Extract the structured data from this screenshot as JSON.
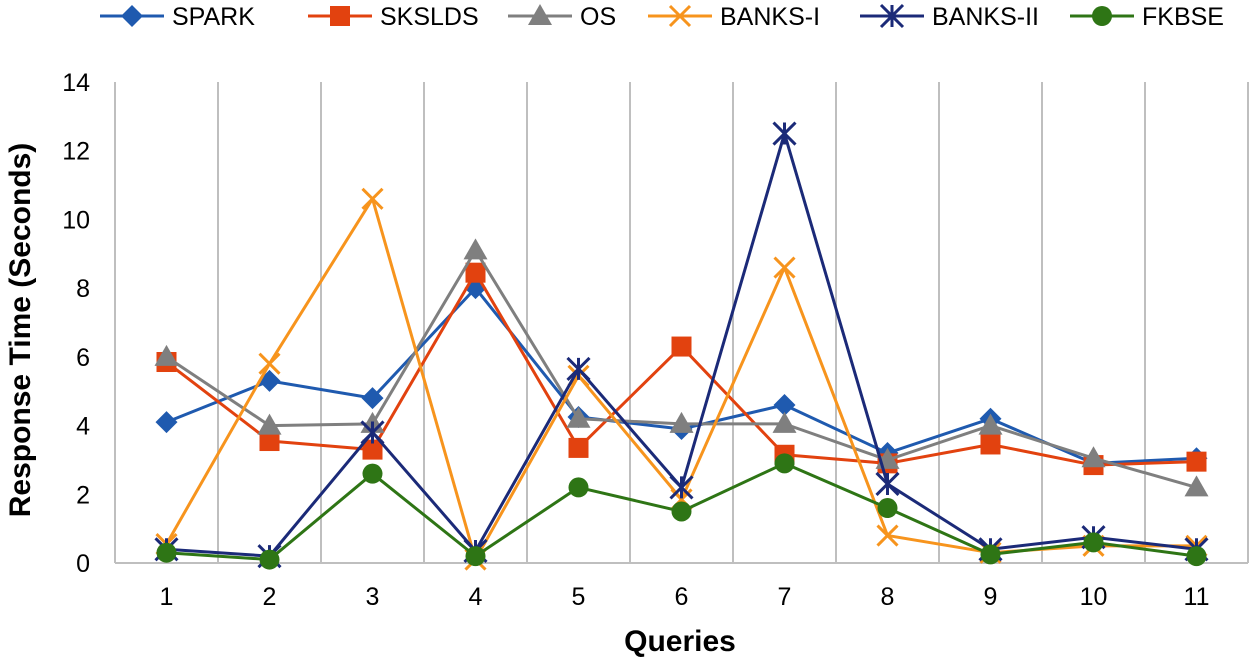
{
  "chart_data": {
    "type": "line",
    "title": "",
    "xlabel": "Queries",
    "ylabel": "Response Time (Seconds)",
    "categories": [
      "1",
      "2",
      "3",
      "4",
      "5",
      "6",
      "7",
      "8",
      "9",
      "10",
      "11"
    ],
    "ylim": [
      0,
      14
    ],
    "yticks": [
      0,
      2,
      4,
      6,
      8,
      10,
      12,
      14
    ],
    "grid": "vertical",
    "legend_position": "top",
    "series": [
      {
        "name": "SPARK",
        "color": "#1F5AAF",
        "marker": "diamond",
        "values": [
          4.1,
          5.3,
          4.8,
          8.0,
          4.25,
          3.9,
          4.6,
          3.2,
          4.2,
          2.9,
          3.05
        ]
      },
      {
        "name": "SKSLDS",
        "color": "#E2420F",
        "marker": "square",
        "values": [
          5.85,
          3.55,
          3.3,
          8.45,
          3.35,
          6.3,
          3.15,
          2.9,
          3.45,
          2.85,
          2.95
        ]
      },
      {
        "name": "OS",
        "color": "#7F7F7F",
        "marker": "triangle",
        "values": [
          6.0,
          4.0,
          4.05,
          9.1,
          4.2,
          4.05,
          4.05,
          3.0,
          4.0,
          3.05,
          2.2
        ]
      },
      {
        "name": "BANKS-I",
        "color": "#F7941D",
        "marker": "x",
        "values": [
          0.55,
          5.8,
          10.6,
          0.1,
          5.45,
          1.85,
          8.6,
          0.8,
          0.3,
          0.5,
          0.5
        ]
      },
      {
        "name": "BANKS-II",
        "color": "#1B2A78",
        "marker": "star",
        "values": [
          0.4,
          0.2,
          3.8,
          0.35,
          5.65,
          2.2,
          12.5,
          2.3,
          0.4,
          0.75,
          0.4
        ]
      },
      {
        "name": "FKBSE",
        "color": "#2E7515",
        "marker": "circle",
        "values": [
          0.3,
          0.1,
          2.6,
          0.2,
          2.2,
          1.5,
          2.9,
          1.6,
          0.25,
          0.6,
          0.2
        ]
      }
    ]
  }
}
